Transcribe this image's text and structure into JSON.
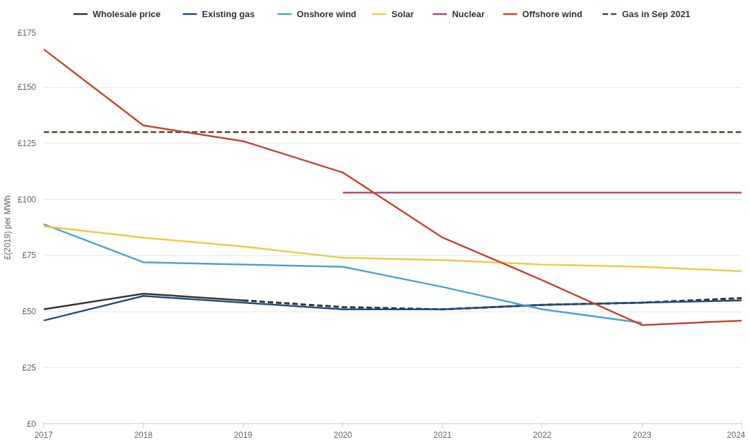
{
  "chart_data": {
    "type": "line",
    "ylabel": "£(2019) per MWh",
    "x": [
      2017,
      2018,
      2019,
      2020,
      2021,
      2022,
      2023,
      2024
    ],
    "xlim": [
      2017,
      2024
    ],
    "xticks": [
      2017,
      2018,
      2019,
      2020,
      2021,
      2022,
      2023,
      2024
    ],
    "ylim": [
      0,
      175
    ],
    "yticks": [
      {
        "value": 0,
        "label": "£0"
      },
      {
        "value": 25,
        "label": "£25"
      },
      {
        "value": 50,
        "label": "£50"
      },
      {
        "value": 75,
        "label": "£75"
      },
      {
        "value": 100,
        "label": "£100"
      },
      {
        "value": 125,
        "label": "£125"
      },
      {
        "value": 150,
        "label": "£150"
      },
      {
        "value": 175,
        "label": "£175"
      }
    ],
    "grid": "y",
    "legend": "top",
    "marker": "none",
    "line_style": "solid",
    "series": [
      {
        "name": "Wholesale price",
        "color": "#333333",
        "x": [
          2017,
          2018,
          2019
        ],
        "values": [
          51,
          58,
          55
        ]
      },
      {
        "color": "#333333",
        "x": [
          2019,
          2020,
          2021,
          2022,
          2023,
          2024
        ],
        "values": [
          55,
          52,
          51,
          53,
          54,
          56
        ],
        "line_style": "dashed"
      },
      {
        "name": "Existing gas",
        "color": "#1f4e79",
        "values": [
          46,
          57,
          54,
          51,
          51,
          53,
          54,
          55
        ]
      },
      {
        "name": "Onshore wind",
        "color": "#4a9fd8",
        "x": [
          2017,
          2018,
          2019,
          2020,
          2021,
          2022,
          2023
        ],
        "values": [
          89,
          72,
          71,
          70,
          61,
          51,
          45
        ]
      },
      {
        "name": "Solar",
        "color": "#f0c93e",
        "values": [
          88,
          83,
          79,
          74,
          73,
          71,
          70,
          68
        ]
      },
      {
        "name": "Nuclear",
        "color": "#b5477f",
        "x": [
          2020,
          2024
        ],
        "values": [
          103,
          103
        ]
      },
      {
        "name": "Offshore wind",
        "color": "#c8412c",
        "values": [
          167,
          133,
          126,
          112,
          83,
          64,
          44,
          46
        ]
      },
      {
        "name": "Gas in Sep 2021",
        "color": "#7b5a3d",
        "values": [
          130,
          130,
          130,
          130,
          130,
          130,
          130,
          130
        ],
        "line_style": "dashed"
      }
    ]
  }
}
